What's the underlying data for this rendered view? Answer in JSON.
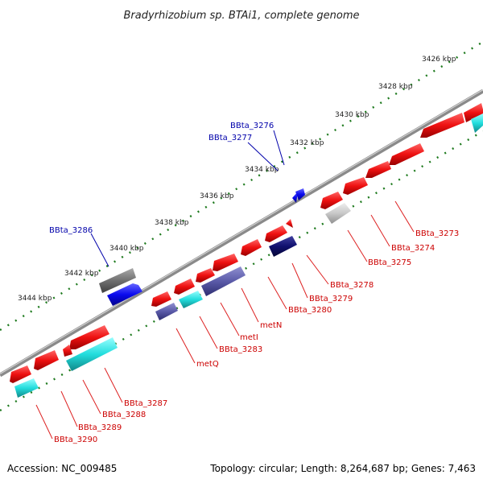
{
  "title": "Bradyrhizobium sp. BTAi1, complete genome",
  "ticks": [
    "3426 kbp",
    "3428 kbp",
    "3430 kbp",
    "3432 kbp",
    "3434 kbp",
    "3436 kbp",
    "3438 kbp",
    "3440 kbp",
    "3442 kbp",
    "3444 kbp"
  ],
  "labels_blue": [
    "BBta_3276",
    "BBta_3277",
    "BBta_3286"
  ],
  "labels_red": [
    "BBta_3273",
    "BBta_3274",
    "BBta_3275",
    "BBta_3278",
    "BBta_3279",
    "BBta_3280",
    "metN",
    "metI",
    "BBta_3283",
    "metQ",
    "BBta_3287",
    "BBta_3288",
    "BBta_3289",
    "BBta_3290"
  ],
  "footer": {
    "accession": "Accession: NC_009485",
    "topology": "Topology: circular; Length: 8,264,687 bp; Genes: 7,463"
  },
  "colors": {
    "red_gene": "#ee1111",
    "cyan_gene": "#22dddd",
    "navy_gene": "#5a5aa8",
    "dark_navy": "#10106e",
    "blue_gene": "#0a0aee",
    "gray_gene": "#707070",
    "light_gray": "#c8c8c8",
    "dots": "#1e7a1e",
    "backbone": "#8a8a8a"
  }
}
